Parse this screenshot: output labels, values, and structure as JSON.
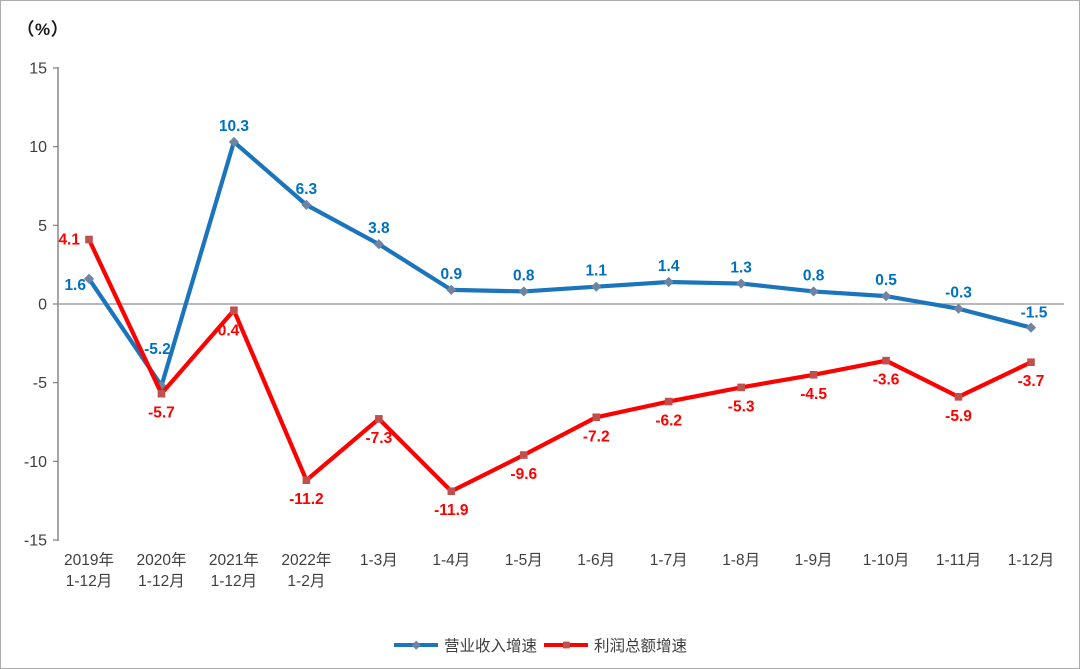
{
  "unit_label": "（%）",
  "chart_data": {
    "type": "line",
    "title": "",
    "xlabel": "",
    "ylabel": "（%）",
    "ylim": [
      -15,
      15
    ],
    "yticks": [
      15,
      10,
      5,
      0,
      -5,
      -10,
      -15
    ],
    "grid": false,
    "legend_position": "bottom",
    "axis_color": "#808080",
    "zero_line_color": "#a0a0a0",
    "categories": [
      "2019年\n1-12月",
      "2020年\n1-12月",
      "2021年\n1-12月",
      "2022年\n1-2月",
      "1-3月",
      "1-4月",
      "1-5月",
      "1-6月",
      "1-7月",
      "1-8月",
      "1-9月",
      "1-10月",
      "1-11月",
      "1-12月"
    ],
    "series": [
      {
        "name": "营业收入增速",
        "color": "#1b75bc",
        "label_color": "#0070c0",
        "marker": "diamond",
        "marker_color": "#6d84a3",
        "values": [
          1.6,
          -5.2,
          10.3,
          6.3,
          3.8,
          0.9,
          0.8,
          1.1,
          1.4,
          1.3,
          0.8,
          0.5,
          -0.3,
          -1.5
        ]
      },
      {
        "name": "利润总额增速",
        "color": "#fe0000",
        "label_color": "#ff0000",
        "marker": "square",
        "marker_color": "#c0504d",
        "values": [
          4.1,
          -5.7,
          -0.4,
          -11.2,
          -7.3,
          -11.9,
          -9.6,
          -7.2,
          -6.2,
          -5.3,
          -4.5,
          -3.6,
          -5.9,
          -3.7
        ]
      }
    ]
  }
}
